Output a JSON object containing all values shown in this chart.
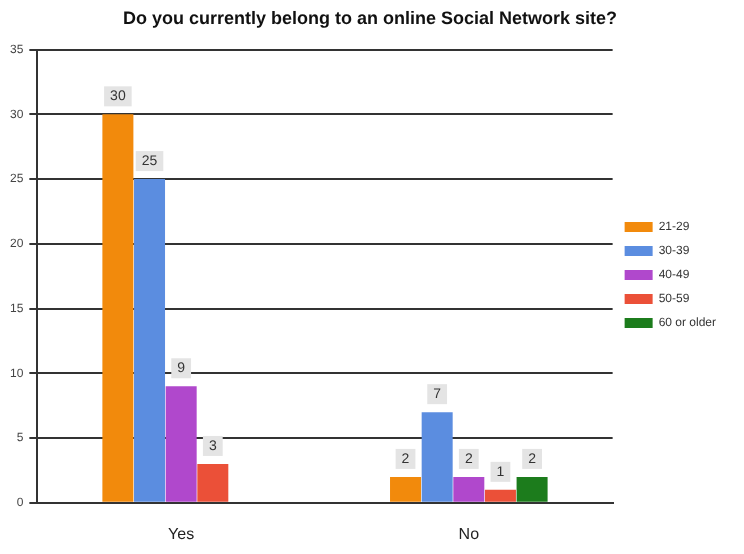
{
  "chart_data": {
    "type": "bar",
    "title": "Do you currently belong to an online Social Network site?",
    "categories": [
      "Yes",
      "No"
    ],
    "series": [
      {
        "name": "21-29",
        "color": "#f28a0c",
        "values": [
          30,
          2
        ]
      },
      {
        "name": "30-39",
        "color": "#5b8de0",
        "values": [
          25,
          7
        ]
      },
      {
        "name": "40-49",
        "color": "#b048cc",
        "values": [
          9,
          2
        ]
      },
      {
        "name": "50-59",
        "color": "#eb5038",
        "values": [
          3,
          1
        ]
      },
      {
        "name": "60 or older",
        "color": "#1c7c1c",
        "values": [
          null,
          2
        ]
      }
    ],
    "ylim": [
      0,
      35
    ],
    "yticks": [
      0,
      5,
      10,
      15,
      20,
      25,
      30,
      35
    ],
    "grid": "y",
    "legend": "right",
    "data_labels": true
  }
}
